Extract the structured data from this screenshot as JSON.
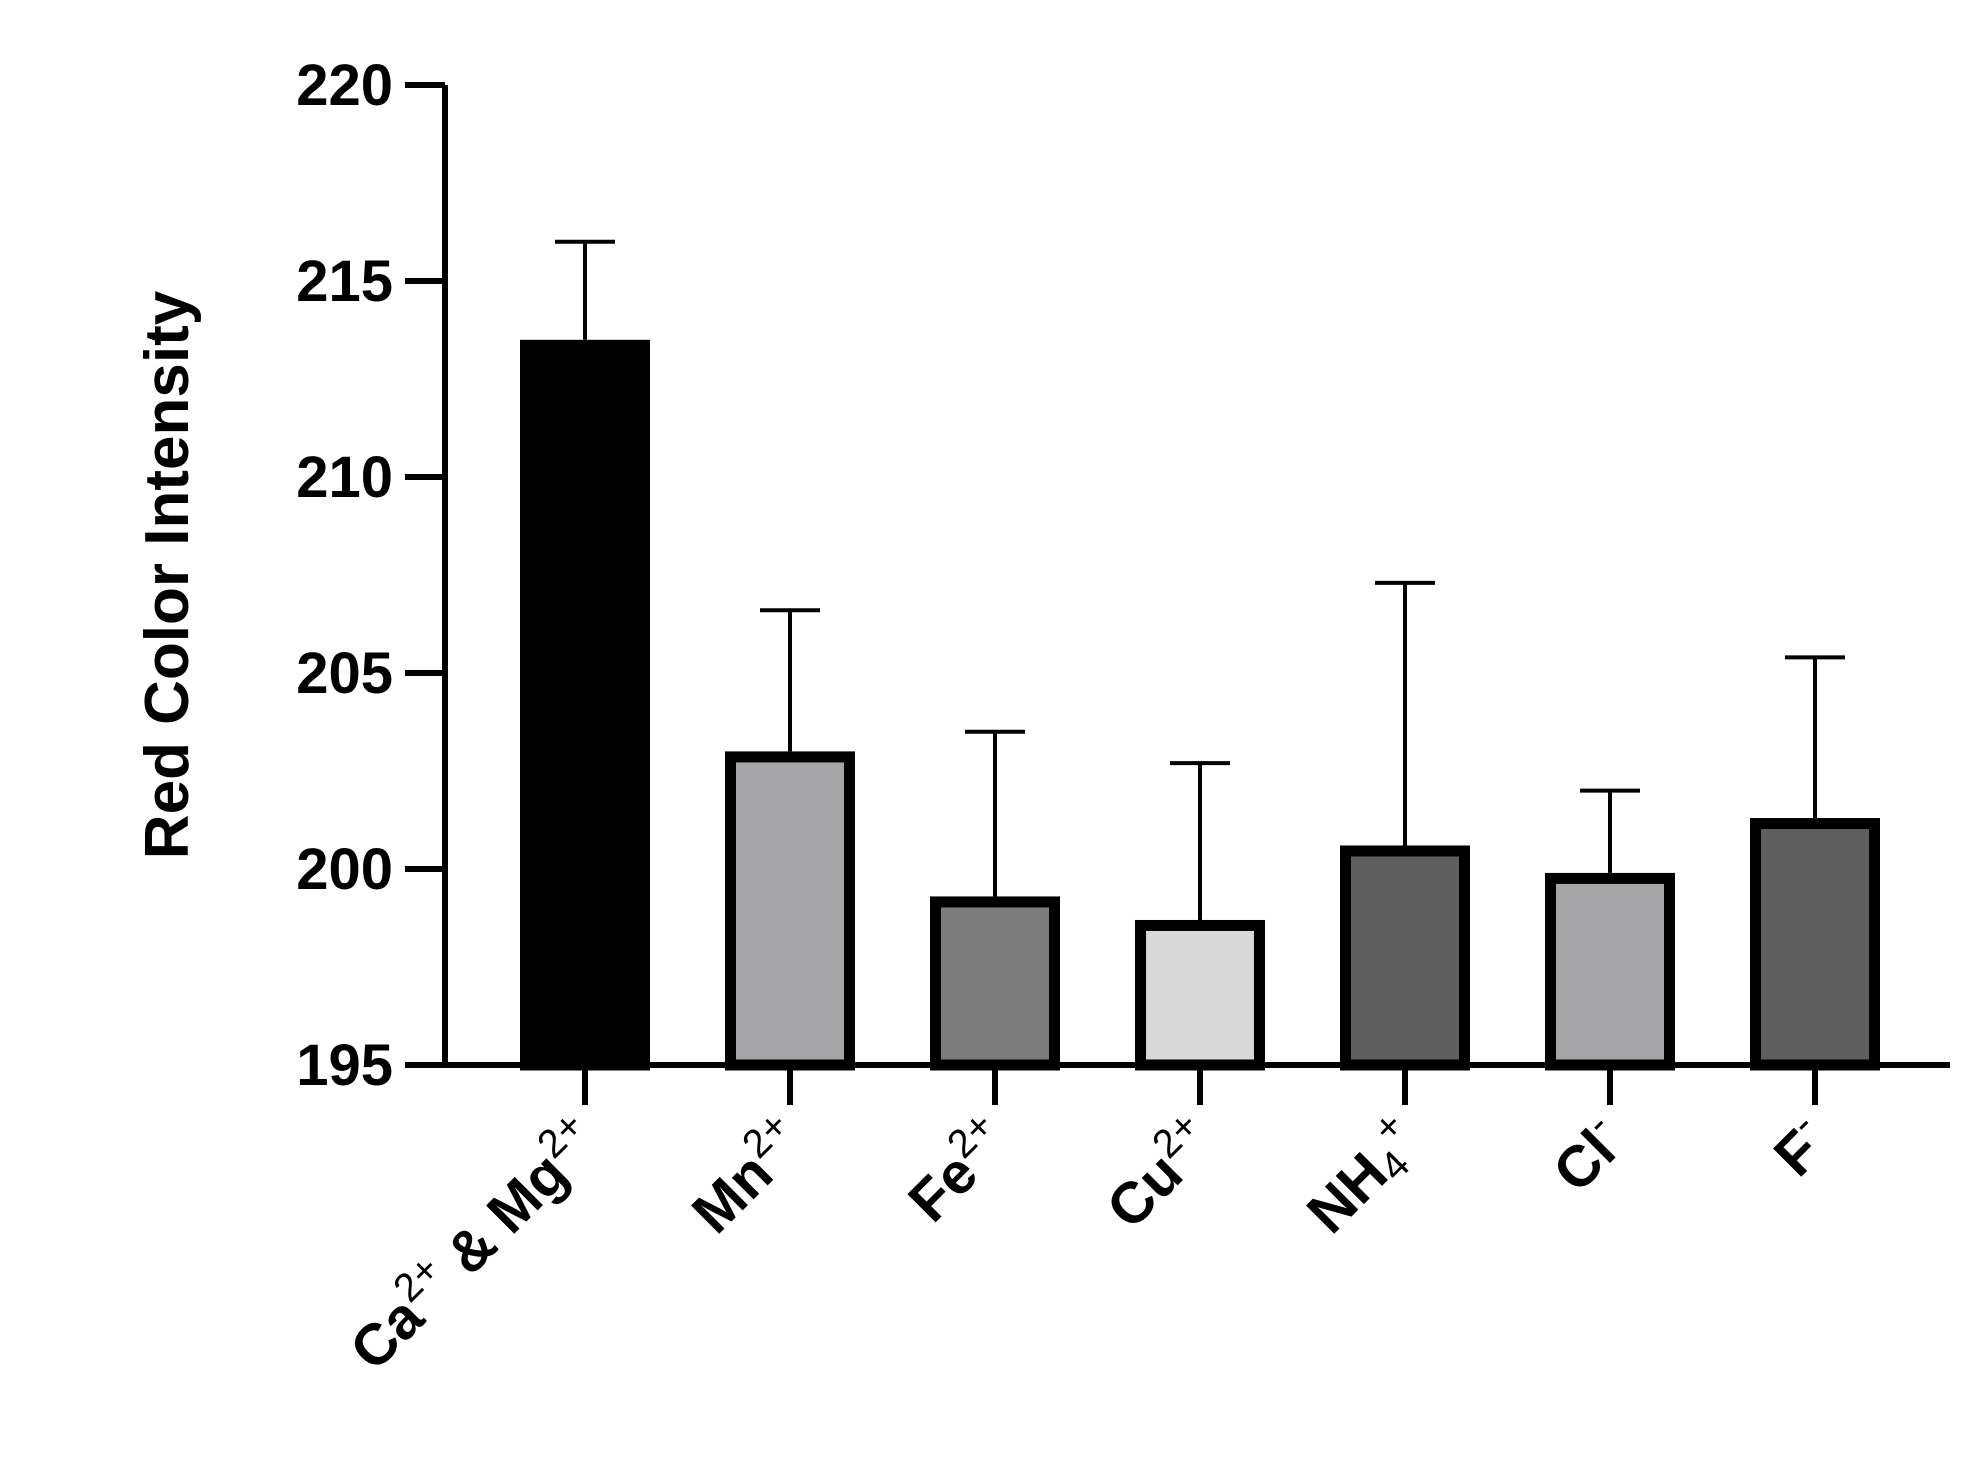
{
  "chart_data": {
    "type": "bar",
    "title": "",
    "xlabel": "",
    "ylabel": "Red Color Intensity",
    "ylim": [
      195,
      220
    ],
    "yticks": [
      195,
      200,
      205,
      210,
      215,
      220
    ],
    "grid": false,
    "error_bars": "upper",
    "categories": [
      {
        "id": "ca-mg",
        "parts": [
          {
            "t": "Ca"
          },
          {
            "t": "2+",
            "s": "sup"
          },
          {
            "t": " & Mg"
          },
          {
            "t": "2+",
            "s": "sup"
          }
        ]
      },
      {
        "id": "mn",
        "parts": [
          {
            "t": "Mn"
          },
          {
            "t": "2+",
            "s": "sup"
          }
        ]
      },
      {
        "id": "fe",
        "parts": [
          {
            "t": "Fe"
          },
          {
            "t": "2+",
            "s": "sup"
          }
        ]
      },
      {
        "id": "cu",
        "parts": [
          {
            "t": "Cu"
          },
          {
            "t": "2+",
            "s": "sup"
          }
        ]
      },
      {
        "id": "nh4",
        "parts": [
          {
            "t": "NH"
          },
          {
            "t": "4",
            "s": "sub"
          },
          {
            "t": "+",
            "s": "sup"
          }
        ]
      },
      {
        "id": "cl",
        "parts": [
          {
            "t": "Cl"
          },
          {
            "t": "-",
            "s": "sup"
          }
        ]
      },
      {
        "id": "f",
        "parts": [
          {
            "t": "F"
          },
          {
            "t": "-",
            "s": "sup"
          }
        ]
      }
    ],
    "values": [
      213.5,
      203.0,
      199.3,
      198.7,
      200.6,
      199.9,
      201.3
    ],
    "errors": [
      2.5,
      3.6,
      4.2,
      4.0,
      6.7,
      2.1,
      4.1
    ],
    "colors": [
      "#000000",
      "#a5a5a8",
      "#7c7c7c",
      "#d9d9d9",
      "#5f5f5f",
      "#a5a5a8",
      "#5f5f5f"
    ]
  }
}
